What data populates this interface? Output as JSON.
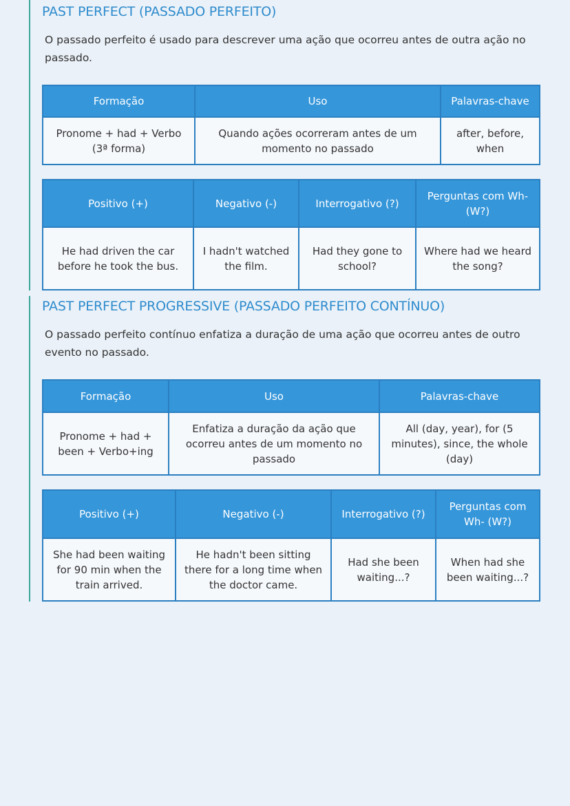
{
  "sections": [
    {
      "title": "PAST PERFECT (PASSADO PERFEITO)",
      "description": "O passado perfeito é usado para descrever uma ação que ocorreu antes de outra ação no passado.",
      "usage_table": {
        "headers": [
          "Formação",
          "Uso",
          "Palavras-chave"
        ],
        "row": [
          "Pronome + had + Verbo (3ª forma)",
          "Quando ações ocorreram antes de um momento no passado",
          "after, before, when"
        ]
      },
      "examples_table": {
        "headers": [
          "Positivo (+)",
          "Negativo (-)",
          "Interrogativo (?)",
          "Perguntas com Wh- (W?)"
        ],
        "row": [
          "He had driven the car before he took the bus.",
          "I hadn't watched the film.",
          "Had they gone to school?",
          "Where had we heard the song?"
        ]
      }
    },
    {
      "title": "PAST PERFECT PROGRESSIVE (PASSADO PERFEITO CONTÍNUO)",
      "description": "O passado perfeito contínuo enfatiza a duração de uma ação que ocorreu antes de outro evento no passado.",
      "usage_table": {
        "headers": [
          "Formação",
          "Uso",
          "Palavras-chave"
        ],
        "row": [
          "Pronome + had + been + Verbo+ing",
          "Enfatiza a duração da ação que ocorreu antes de um momento no passado",
          "All (day, year), for (5 minutes), since, the whole (day)"
        ]
      },
      "examples_table": {
        "headers": [
          "Positivo (+)",
          "Negativo (-)",
          "Interrogativo (?)",
          "Perguntas com Wh- (W?)"
        ],
        "row": [
          "She had been waiting for 90 min when the train arrived.",
          "He hadn't been sitting there for a long time when the doctor came.",
          "Had she been waiting...?",
          "When had she been waiting...?"
        ]
      }
    }
  ],
  "colors": {
    "header": "#3596da",
    "border": "#2a7fc1",
    "title": "#2e8bcd",
    "section_rule": "#3aa59a",
    "background": "#eaf1f8"
  }
}
